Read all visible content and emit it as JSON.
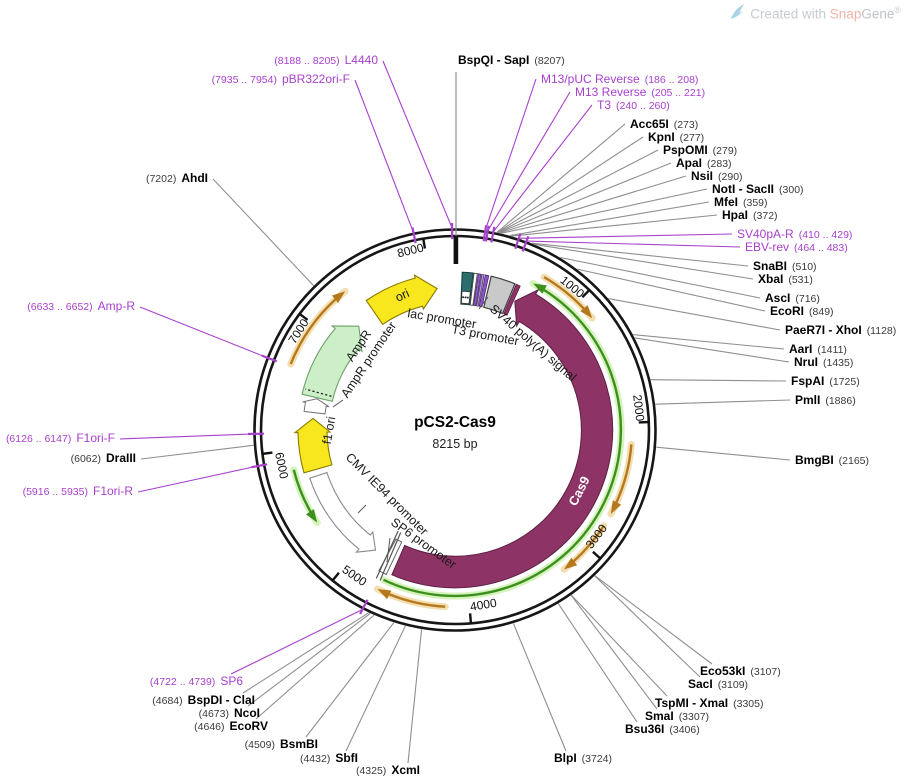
{
  "header": {
    "created_with": "Created with",
    "brand_snap": "Snap",
    "brand_gene": "Gene",
    "registered": "®"
  },
  "plasmid": {
    "name": "pCS2-Cas9",
    "size": "8215 bp"
  },
  "ticks": [
    "1000",
    "2000",
    "3000",
    "4000",
    "5000",
    "6000",
    "7000",
    "8000"
  ],
  "feature_labels": [
    {
      "text": "ori"
    },
    {
      "text": "lac promoter"
    },
    {
      "text": "T3 promoter"
    },
    {
      "text": "SV40 poly(A) signal"
    },
    {
      "text": "Cas9"
    },
    {
      "text": "CMV IE94 promoter"
    },
    {
      "text": "SP6 promoter"
    },
    {
      "text": "f1 ori"
    },
    {
      "text": "AmpR"
    },
    {
      "text": "AmpR promoter"
    }
  ],
  "enzymes": [
    {
      "name": "BspQI - SapI",
      "loc": "(8207)"
    },
    {
      "name": "Acc65I",
      "loc": "(273)"
    },
    {
      "name": "KpnI",
      "loc": "(277)"
    },
    {
      "name": "PspOMI",
      "loc": "(279)"
    },
    {
      "name": "ApaI",
      "loc": "(283)"
    },
    {
      "name": "NsiI",
      "loc": "(290)"
    },
    {
      "name": "NotI - SacII",
      "loc": "(300)"
    },
    {
      "name": "MfeI",
      "loc": "(359)"
    },
    {
      "name": "HpaI",
      "loc": "(372)"
    },
    {
      "name": "SnaBI",
      "loc": "(510)"
    },
    {
      "name": "XbaI",
      "loc": "(531)"
    },
    {
      "name": "AscI",
      "loc": "(716)"
    },
    {
      "name": "EcoRI",
      "loc": "(849)"
    },
    {
      "name": "PaeR7I - XhoI",
      "loc": "(1128)"
    },
    {
      "name": "AarI",
      "loc": "(1411)"
    },
    {
      "name": "NruI",
      "loc": "(1435)"
    },
    {
      "name": "FspAI",
      "loc": "(1725)"
    },
    {
      "name": "PmlI",
      "loc": "(1886)"
    },
    {
      "name": "BmgBI",
      "loc": "(2165)"
    },
    {
      "name": "Eco53kI",
      "loc": "(3107)"
    },
    {
      "name": "SacI",
      "loc": "(3109)"
    },
    {
      "name": "TspMI - XmaI",
      "loc": "(3305)"
    },
    {
      "name": "SmaI",
      "loc": "(3307)"
    },
    {
      "name": "Bsu36I",
      "loc": "(3406)"
    },
    {
      "name": "BlpI",
      "loc": "(3724)"
    },
    {
      "name": "XcmI",
      "loc": "(4325)"
    },
    {
      "name": "SbfI",
      "loc": "(4432)"
    },
    {
      "name": "BsmBI",
      "loc": "(4509)"
    },
    {
      "name": "EcoRV",
      "loc": "(4646)"
    },
    {
      "name": "NcoI",
      "loc": "(4673)"
    },
    {
      "name": "BspDI - ClaI",
      "loc": "(4684)"
    },
    {
      "name": "DraIII",
      "loc": "(6062)"
    },
    {
      "name": "AhdI",
      "loc": "(7202)"
    }
  ],
  "primers": [
    {
      "name": "L4440",
      "loc": "(8188 .. 8205)"
    },
    {
      "name": "pBR322ori-F",
      "loc": "(7935 .. 7954)"
    },
    {
      "name": "M13/pUC Reverse",
      "loc": "(186 .. 208)"
    },
    {
      "name": "M13 Reverse",
      "loc": "(205 .. 221)"
    },
    {
      "name": "T3",
      "loc": "(240 .. 260)"
    },
    {
      "name": "SV40pA-R",
      "loc": "(410 .. 429)"
    },
    {
      "name": "EBV-rev",
      "loc": "(464 .. 483)"
    },
    {
      "name": "SP6",
      "loc": "(4722 .. 4739)"
    },
    {
      "name": "F1ori-R",
      "loc": "(5916 .. 5935)"
    },
    {
      "name": "F1ori-F",
      "loc": "(6126 .. 6147)"
    },
    {
      "name": "Amp-R",
      "loc": "(6633 .. 6652)"
    }
  ],
  "colors": {
    "primer_purple": "#A841CC",
    "cas9_maroon": "#8E3366",
    "feature_yellow": "#F8E71C",
    "ampr_green": "#CDEFC8",
    "orf_green": "#3F8F1F",
    "orf_orange": "#B5791D"
  }
}
